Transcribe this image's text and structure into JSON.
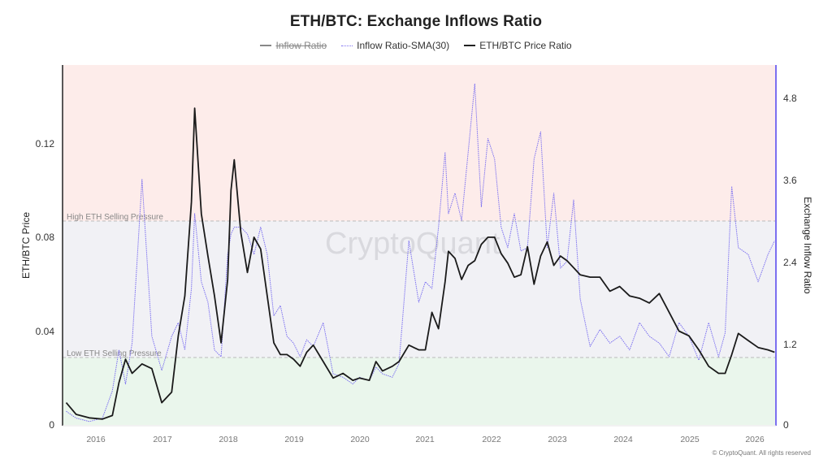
{
  "header": {
    "title": "ETH/BTC: Exchange Inflows Ratio"
  },
  "legend": [
    {
      "label": "Inflow Ratio",
      "style": "solid",
      "color": "#888888",
      "disabled": true
    },
    {
      "label": "Inflow Ratio-SMA(30)",
      "style": "dotted",
      "color": "#7b6ff0",
      "disabled": false
    },
    {
      "label": "ETH/BTC Price Ratio",
      "style": "solid",
      "color": "#1a1a1a",
      "disabled": false
    }
  ],
  "axes": {
    "left_label": "ETH/BTC Price",
    "right_label": "Exchange Inflow Ratio",
    "left_ticks": [
      "0",
      "0.04",
      "0.08",
      "0.12"
    ],
    "right_ticks": [
      "0",
      "1.2",
      "2.4",
      "3.6",
      "4.8"
    ],
    "x_ticks": [
      "2016",
      "2017",
      "2018",
      "2019",
      "2020",
      "2021",
      "2022",
      "2023",
      "2024",
      "2025",
      "2026"
    ]
  },
  "zones": {
    "high_label": "High ETH Selling Pressure",
    "low_label": "Low ETH Selling Pressure",
    "high_color": "#fdecea",
    "mid_color": "#f1f1f5",
    "low_color": "#eaf6ec"
  },
  "watermark": "CryptoQuant",
  "footer": {
    "copyright": "© CryptoQuant. All rights reserved"
  },
  "colors": {
    "price": "#1a1a1a",
    "sma": "#7b6ff0",
    "right_axis": "#7b6ff0",
    "left_axis": "#222222"
  },
  "chart_data": {
    "type": "line",
    "title": "ETH/BTC: Exchange Inflows Ratio",
    "xlabel": "",
    "ylabel": "ETH/BTC Price",
    "y2label": "Exchange Inflow Ratio",
    "ylim": [
      0,
      0.153
    ],
    "y2lim": [
      0,
      5.3
    ],
    "grid": false,
    "legend_position": "top",
    "thresholds": {
      "high_selling_pressure_ratio": 2.98,
      "low_selling_pressure_ratio": 0.99
    },
    "x": [
      2015.55,
      2015.7,
      2015.9,
      2016.1,
      2016.25,
      2016.35,
      2016.45,
      2016.55,
      2016.7,
      2016.85,
      2017.0,
      2017.15,
      2017.25,
      2017.35,
      2017.45,
      2017.5,
      2017.6,
      2017.7,
      2017.8,
      2017.9,
      2018.0,
      2018.05,
      2018.1,
      2018.2,
      2018.3,
      2018.4,
      2018.5,
      2018.6,
      2018.7,
      2018.8,
      2018.9,
      2019.0,
      2019.1,
      2019.2,
      2019.3,
      2019.45,
      2019.6,
      2019.75,
      2019.9,
      2020.0,
      2020.15,
      2020.25,
      2020.35,
      2020.5,
      2020.6,
      2020.75,
      2020.9,
      2021.0,
      2021.1,
      2021.2,
      2021.3,
      2021.35,
      2021.45,
      2021.55,
      2021.65,
      2021.75,
      2021.85,
      2021.95,
      2022.05,
      2022.15,
      2022.25,
      2022.35,
      2022.45,
      2022.55,
      2022.65,
      2022.75,
      2022.85,
      2022.95,
      2023.05,
      2023.15,
      2023.25,
      2023.35,
      2023.5,
      2023.65,
      2023.8,
      2023.95,
      2024.1,
      2024.25,
      2024.4,
      2024.55,
      2024.7,
      2024.85,
      2025.0,
      2025.15,
      2025.3,
      2025.45,
      2025.55,
      2025.65,
      2025.75,
      2025.9,
      2026.05,
      2026.2,
      2026.3
    ],
    "series": [
      {
        "name": "ETH/BTC Price Ratio",
        "axis": "left",
        "values": [
          0.0095,
          0.0045,
          0.003,
          0.0025,
          0.004,
          0.018,
          0.028,
          0.022,
          0.026,
          0.024,
          0.0095,
          0.014,
          0.038,
          0.055,
          0.095,
          0.135,
          0.09,
          0.072,
          0.055,
          0.035,
          0.062,
          0.1,
          0.113,
          0.082,
          0.065,
          0.08,
          0.075,
          0.055,
          0.035,
          0.03,
          0.03,
          0.028,
          0.025,
          0.031,
          0.034,
          0.027,
          0.02,
          0.022,
          0.019,
          0.02,
          0.019,
          0.027,
          0.023,
          0.025,
          0.027,
          0.034,
          0.032,
          0.032,
          0.048,
          0.041,
          0.061,
          0.074,
          0.071,
          0.062,
          0.068,
          0.07,
          0.077,
          0.08,
          0.08,
          0.073,
          0.069,
          0.063,
          0.064,
          0.076,
          0.06,
          0.072,
          0.078,
          0.068,
          0.072,
          0.07,
          0.067,
          0.064,
          0.063,
          0.063,
          0.057,
          0.059,
          0.055,
          0.054,
          0.052,
          0.056,
          0.048,
          0.04,
          0.038,
          0.032,
          0.025,
          0.022,
          0.022,
          0.03,
          0.039,
          0.036,
          0.033,
          0.032,
          0.031
        ]
      },
      {
        "name": "Inflow Ratio-SMA(30)",
        "axis": "right",
        "values": [
          0.2,
          0.1,
          0.05,
          0.1,
          0.5,
          1.1,
          0.6,
          1.2,
          3.6,
          1.3,
          0.8,
          1.3,
          1.5,
          1.1,
          2.0,
          3.1,
          2.1,
          1.8,
          1.1,
          1.0,
          2.5,
          2.8,
          2.9,
          2.9,
          2.8,
          2.5,
          2.9,
          2.5,
          1.6,
          1.75,
          1.3,
          1.2,
          1.0,
          1.25,
          1.15,
          1.5,
          0.75,
          0.7,
          0.6,
          0.7,
          0.65,
          0.85,
          0.75,
          0.7,
          0.9,
          2.7,
          1.8,
          2.1,
          2.0,
          2.9,
          4.0,
          3.1,
          3.4,
          3.0,
          4.0,
          5.0,
          3.2,
          4.2,
          3.9,
          2.9,
          2.6,
          3.1,
          2.55,
          2.6,
          3.9,
          4.3,
          2.6,
          3.4,
          2.3,
          2.4,
          3.3,
          1.85,
          1.15,
          1.4,
          1.2,
          1.3,
          1.1,
          1.5,
          1.3,
          1.2,
          1.0,
          1.5,
          1.3,
          0.95,
          1.5,
          1.0,
          1.35,
          3.5,
          2.6,
          2.5,
          2.1,
          2.5,
          2.7
        ]
      }
    ]
  }
}
